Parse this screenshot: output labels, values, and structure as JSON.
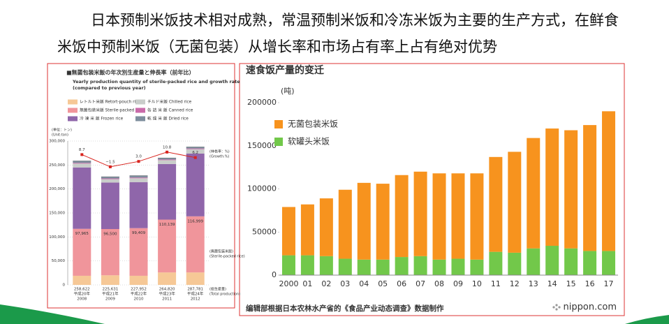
{
  "header": {
    "title": "日本预制米饭技术相对成熟，常温预制米饭和冷冻米饭为主要的生产方式，在鲜食米饭中预制米饭（无菌包装）从增长率和市场占有率上占有绝对优势"
  },
  "chart_data": [
    {
      "type": "bar",
      "stacked": true,
      "title": "■無菌包装米飯の年次別生産量と伸長率（前年比）",
      "subtitle": [
        "Yearly production quantity of sterile-packed rice and growth rate",
        "(compared to previous year)"
      ],
      "y_label": [
        "(単位：トン)",
        "(Unit:ton)"
      ],
      "categories": [
        "2008",
        "2009",
        "2010",
        "2011",
        "2012"
      ],
      "era_labels": [
        "平成20年",
        "平成21年",
        "平成22年",
        "平成23年",
        "平成24年"
      ],
      "series": [
        {
          "name": "レトルト米飯 Retort-pouch rice",
          "color": "#f6c896",
          "values": [
            19000,
            20000,
            19000,
            26000,
            26000
          ]
        },
        {
          "name": "無菌包装米飯 Sterile-packed rice",
          "color": "#f0959b",
          "values": [
            97965,
            96500,
            99409,
            110139,
            116999
          ],
          "value_labels": [
            "97,965",
            "96,500",
            "99,409",
            "110,139",
            "116,999"
          ]
        },
        {
          "name": "冷 凍 米 飯 Frozen rice",
          "color": "#8f66aa",
          "values": [
            128000,
            97000,
            96000,
            116000,
            131000
          ]
        },
        {
          "name": "チルド米飯 Chilled rice",
          "color": "#c9cdca",
          "values": [
            8000,
            7000,
            8000,
            8000,
            9000
          ]
        },
        {
          "name": "缶 詰 米 飯 Canned rice",
          "color": "#c96aa9",
          "values": [
            1500,
            1500,
            1500,
            1500,
            1500
          ]
        },
        {
          "name": "乾 燥 米 飯 Dried rice",
          "color": "#7e8e9d",
          "values": [
            4157,
            3631,
            4043,
            3181,
            3282
          ]
        }
      ],
      "totals": {
        "values": [
          258622,
          225631,
          227952,
          264820,
          287781
        ],
        "value_labels": [
          "258,622",
          "225,631",
          "227,952",
          "264,820",
          "287,781"
        ]
      },
      "totals_label": [
        "(総生産量)",
        "(Total production)"
      ],
      "growth": {
        "values": [
          8.7,
          -1.5,
          3.0,
          10.8,
          6.2
        ],
        "value_labels": [
          "8.7",
          "−1.5",
          "3.0",
          "10.8",
          "6.2"
        ],
        "color": "#d8231d",
        "axis": "y2"
      },
      "growth_label": [
        "(伸長率：%)",
        "(Growth:%)"
      ],
      "sterile_label": [
        "(無菌包装米飯)",
        "(Sterile-packed rice)"
      ],
      "ylim": [
        0,
        300000
      ],
      "yticks": [
        0,
        {
          "value": 50000,
          "label": "50,000"
        },
        {
          "value": 100000,
          "label": "100,000"
        },
        {
          "value": 150000,
          "label": "150,000"
        },
        {
          "value": 200000,
          "label": "200,000"
        },
        {
          "value": 250000,
          "label": "250,000"
        },
        {
          "value": 300000,
          "label": "300,000"
        }
      ],
      "y2lim": [
        -100,
        20
      ],
      "grid": true
    },
    {
      "type": "bar",
      "stacked": true,
      "title": "速食饭产量的变迁",
      "y_label": "(吨)",
      "categories": [
        "2000",
        "01",
        "02",
        "03",
        "04",
        "05",
        "06",
        "07",
        "08",
        "09",
        "10",
        "11",
        "12",
        "13",
        "14",
        "15",
        "16",
        "17"
      ],
      "series": [
        {
          "name": "无菌包装米饭",
          "color": "#f7931e",
          "values": [
            56000,
            59000,
            67000,
            80000,
            89000,
            88000,
            95000,
            98000,
            100000,
            99000,
            100000,
            110000,
            117000,
            128000,
            136000,
            137000,
            146000,
            162000
          ]
        },
        {
          "name": "软罐头米饭",
          "color": "#72c84a",
          "values": [
            23000,
            23000,
            22000,
            19000,
            18000,
            18000,
            21000,
            22000,
            18000,
            19000,
            18000,
            27000,
            26000,
            31000,
            34000,
            31000,
            28000,
            28000
          ]
        }
      ],
      "ylim": [
        0,
        200000
      ],
      "yticks": [
        0,
        50000,
        100000,
        150000,
        200000
      ],
      "grid": false,
      "legend": "upper-left",
      "source": "编辑部根据日本农林水产省的《食品产业动态调查》数据制作",
      "brand": "nippon.com"
    }
  ]
}
